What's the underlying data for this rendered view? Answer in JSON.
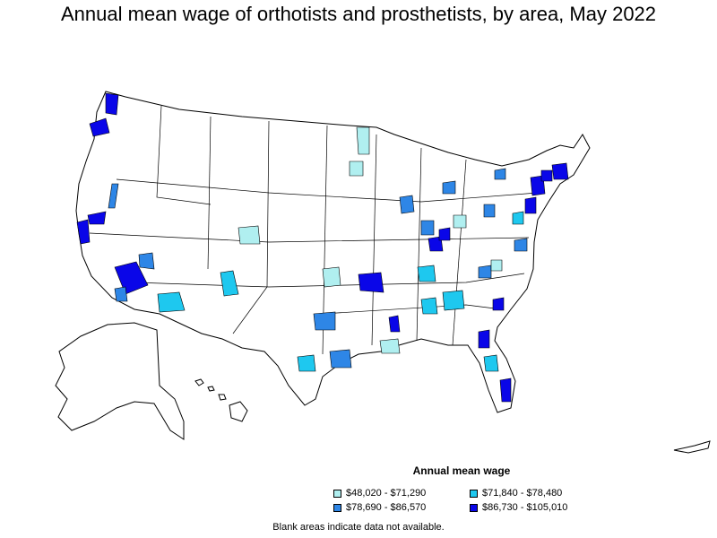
{
  "title": "Annual mean wage of orthotists and prosthetists, by area, May 2022",
  "legend": {
    "title": "Annual mean wage",
    "items": [
      {
        "label": "$48,020 - $71,290",
        "color": "#b0eff0"
      },
      {
        "label": "$71,840 - $78,480",
        "color": "#1ec8ef"
      },
      {
        "label": "$78,690 - $86,570",
        "color": "#2e86e6"
      },
      {
        "label": "$86,730 - $105,010",
        "color": "#0a06e8"
      }
    ]
  },
  "note": "Blank areas indicate data not available.",
  "colors": {
    "outline": "#000000",
    "blank": "#ffffff"
  }
}
